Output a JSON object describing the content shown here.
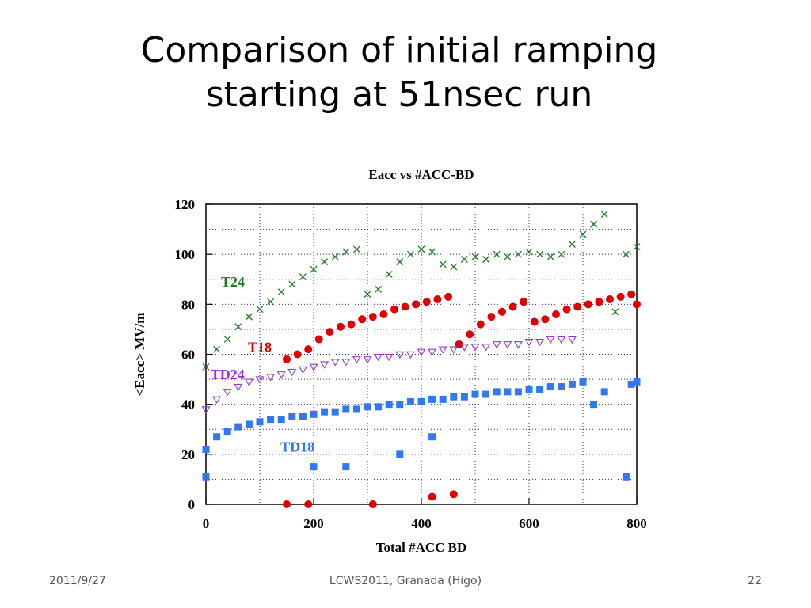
{
  "slide": {
    "title_line1": "Comparison of initial ramping",
    "title_line2": "starting at 51nsec run",
    "footer_date": "2011/9/27",
    "footer_center": "LCWS2011, Granada (Higo)",
    "page_number": "22"
  },
  "chart_data": {
    "type": "scatter",
    "title": "Eacc vs #ACC-BD",
    "xlabel": "Total #ACC BD",
    "ylabel": "<Eacc>   MV/m",
    "xlim": [
      0,
      800
    ],
    "ylim": [
      0,
      120
    ],
    "xticks": [
      0,
      200,
      400,
      600,
      800
    ],
    "yticks": [
      0,
      20,
      40,
      60,
      80,
      100,
      120
    ],
    "grid": true,
    "series": [
      {
        "name": "T24",
        "color": "#1e7a1e",
        "marker": "x",
        "points": [
          [
            0,
            55
          ],
          [
            20,
            62
          ],
          [
            40,
            66
          ],
          [
            60,
            71
          ],
          [
            80,
            75
          ],
          [
            100,
            78
          ],
          [
            120,
            81
          ],
          [
            140,
            85
          ],
          [
            160,
            88
          ],
          [
            180,
            91
          ],
          [
            200,
            94
          ],
          [
            220,
            97
          ],
          [
            240,
            99
          ],
          [
            260,
            101
          ],
          [
            280,
            102
          ],
          [
            300,
            84
          ],
          [
            320,
            86
          ],
          [
            340,
            92
          ],
          [
            360,
            97
          ],
          [
            380,
            100
          ],
          [
            400,
            102
          ],
          [
            420,
            101
          ],
          [
            440,
            96
          ],
          [
            460,
            95
          ],
          [
            480,
            98
          ],
          [
            500,
            99
          ],
          [
            520,
            98
          ],
          [
            540,
            100
          ],
          [
            560,
            99
          ],
          [
            580,
            100
          ],
          [
            600,
            101
          ],
          [
            620,
            100
          ],
          [
            640,
            99
          ],
          [
            660,
            100
          ],
          [
            680,
            104
          ],
          [
            700,
            108
          ],
          [
            720,
            112
          ],
          [
            740,
            116
          ],
          [
            760,
            77
          ],
          [
            780,
            100
          ],
          [
            800,
            103
          ]
        ]
      },
      {
        "name": "T18",
        "color": "#e00000",
        "marker": "circle",
        "points": [
          [
            150,
            0
          ],
          [
            190,
            0
          ],
          [
            310,
            0
          ],
          [
            420,
            3
          ],
          [
            460,
            4
          ],
          [
            150,
            58
          ],
          [
            170,
            60
          ],
          [
            190,
            62
          ],
          [
            210,
            66
          ],
          [
            230,
            69
          ],
          [
            250,
            71
          ],
          [
            270,
            72
          ],
          [
            290,
            74
          ],
          [
            310,
            75
          ],
          [
            330,
            76
          ],
          [
            350,
            78
          ],
          [
            370,
            79
          ],
          [
            390,
            80
          ],
          [
            410,
            81
          ],
          [
            430,
            82
          ],
          [
            450,
            83
          ],
          [
            470,
            64
          ],
          [
            490,
            68
          ],
          [
            510,
            72
          ],
          [
            530,
            75
          ],
          [
            550,
            77
          ],
          [
            570,
            79
          ],
          [
            590,
            81
          ],
          [
            610,
            73
          ],
          [
            630,
            74
          ],
          [
            650,
            76
          ],
          [
            670,
            78
          ],
          [
            690,
            79
          ],
          [
            710,
            80
          ],
          [
            730,
            81
          ],
          [
            750,
            82
          ],
          [
            770,
            83
          ],
          [
            790,
            84
          ],
          [
            800,
            80
          ]
        ]
      },
      {
        "name": "TD24",
        "color": "#9933cc",
        "marker": "triangle-down",
        "points": [
          [
            0,
            38
          ],
          [
            20,
            42
          ],
          [
            40,
            45
          ],
          [
            60,
            47
          ],
          [
            80,
            49
          ],
          [
            100,
            50
          ],
          [
            120,
            51
          ],
          [
            140,
            52
          ],
          [
            160,
            53
          ],
          [
            180,
            54
          ],
          [
            200,
            55
          ],
          [
            220,
            56
          ],
          [
            240,
            57
          ],
          [
            260,
            57
          ],
          [
            280,
            58
          ],
          [
            300,
            58
          ],
          [
            320,
            59
          ],
          [
            340,
            59
          ],
          [
            360,
            60
          ],
          [
            380,
            60
          ],
          [
            400,
            61
          ],
          [
            420,
            61
          ],
          [
            440,
            62
          ],
          [
            460,
            62
          ],
          [
            480,
            63
          ],
          [
            500,
            63
          ],
          [
            520,
            63
          ],
          [
            540,
            64
          ],
          [
            560,
            64
          ],
          [
            580,
            64
          ],
          [
            600,
            65
          ],
          [
            620,
            65
          ],
          [
            640,
            66
          ],
          [
            660,
            66
          ],
          [
            680,
            66
          ]
        ]
      },
      {
        "name": "TD18",
        "color": "#3377ee",
        "marker": "square",
        "points": [
          [
            0,
            11
          ],
          [
            0,
            22
          ],
          [
            20,
            27
          ],
          [
            40,
            29
          ],
          [
            60,
            31
          ],
          [
            80,
            32
          ],
          [
            100,
            33
          ],
          [
            120,
            34
          ],
          [
            140,
            34
          ],
          [
            160,
            35
          ],
          [
            180,
            35
          ],
          [
            200,
            15
          ],
          [
            200,
            36
          ],
          [
            220,
            37
          ],
          [
            240,
            37
          ],
          [
            260,
            15
          ],
          [
            260,
            38
          ],
          [
            280,
            38
          ],
          [
            300,
            39
          ],
          [
            320,
            39
          ],
          [
            340,
            40
          ],
          [
            360,
            20
          ],
          [
            360,
            40
          ],
          [
            380,
            41
          ],
          [
            400,
            41
          ],
          [
            420,
            27
          ],
          [
            420,
            42
          ],
          [
            440,
            42
          ],
          [
            460,
            43
          ],
          [
            480,
            43
          ],
          [
            500,
            44
          ],
          [
            520,
            44
          ],
          [
            540,
            45
          ],
          [
            560,
            45
          ],
          [
            580,
            45
          ],
          [
            600,
            46
          ],
          [
            620,
            46
          ],
          [
            640,
            47
          ],
          [
            660,
            47
          ],
          [
            680,
            48
          ],
          [
            700,
            49
          ],
          [
            720,
            40
          ],
          [
            740,
            45
          ],
          [
            780,
            11
          ],
          [
            790,
            48
          ],
          [
            800,
            49
          ]
        ]
      }
    ],
    "annotations": [
      {
        "text": "T24",
        "x": 50,
        "y": 87,
        "color": "#1e7a1e"
      },
      {
        "text": "T18",
        "x": 100,
        "y": 61,
        "color": "#e00000"
      },
      {
        "text": "TD24",
        "x": 40,
        "y": 50,
        "color": "#9933cc"
      },
      {
        "text": "TD18",
        "x": 170,
        "y": 21,
        "color": "#3377ee"
      }
    ]
  }
}
